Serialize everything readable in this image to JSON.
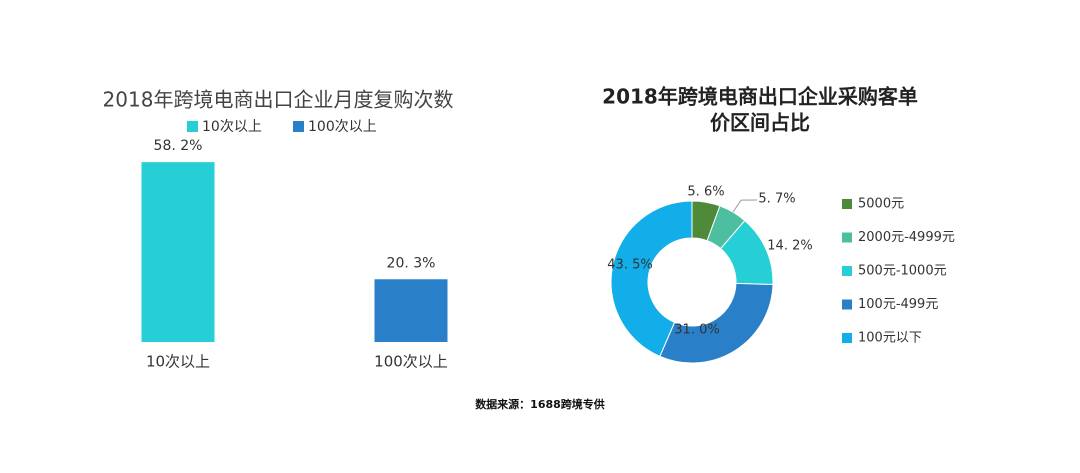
{
  "chart_data": [
    {
      "type": "bar",
      "title": "2018年跨境电商出口企业月度复购次数",
      "categories": [
        "10次以上",
        "100次以上"
      ],
      "series": [
        {
          "name": "10次以上",
          "color": "#26cfd6",
          "values": [
            58.2,
            null
          ],
          "value_labels": [
            "58. 2%",
            null
          ]
        },
        {
          "name": "100次以上",
          "color": "#2a80c8",
          "values": [
            null,
            20.3
          ],
          "value_labels": [
            null,
            "20. 3%"
          ]
        }
      ]
    },
    {
      "type": "donut",
      "title": [
        "2018年跨境电商出口企业采购客单",
        "价区间占比"
      ],
      "categories": [
        "5000元",
        "2000元-4999元",
        "500元-1000元",
        "100元-499元",
        "100元以下"
      ],
      "values": [
        5.6,
        5.7,
        14.2,
        31.0,
        43.5
      ],
      "value_labels": [
        "5. 6%",
        "5. 7%",
        "14. 2%",
        "31. 0%",
        "43. 5%"
      ],
      "colors": [
        "#4e8a3a",
        "#4dbfa0",
        "#26cfd6",
        "#2a80c8",
        "#12aeea"
      ]
    }
  ],
  "source": "数据来源：1688跨境专供"
}
